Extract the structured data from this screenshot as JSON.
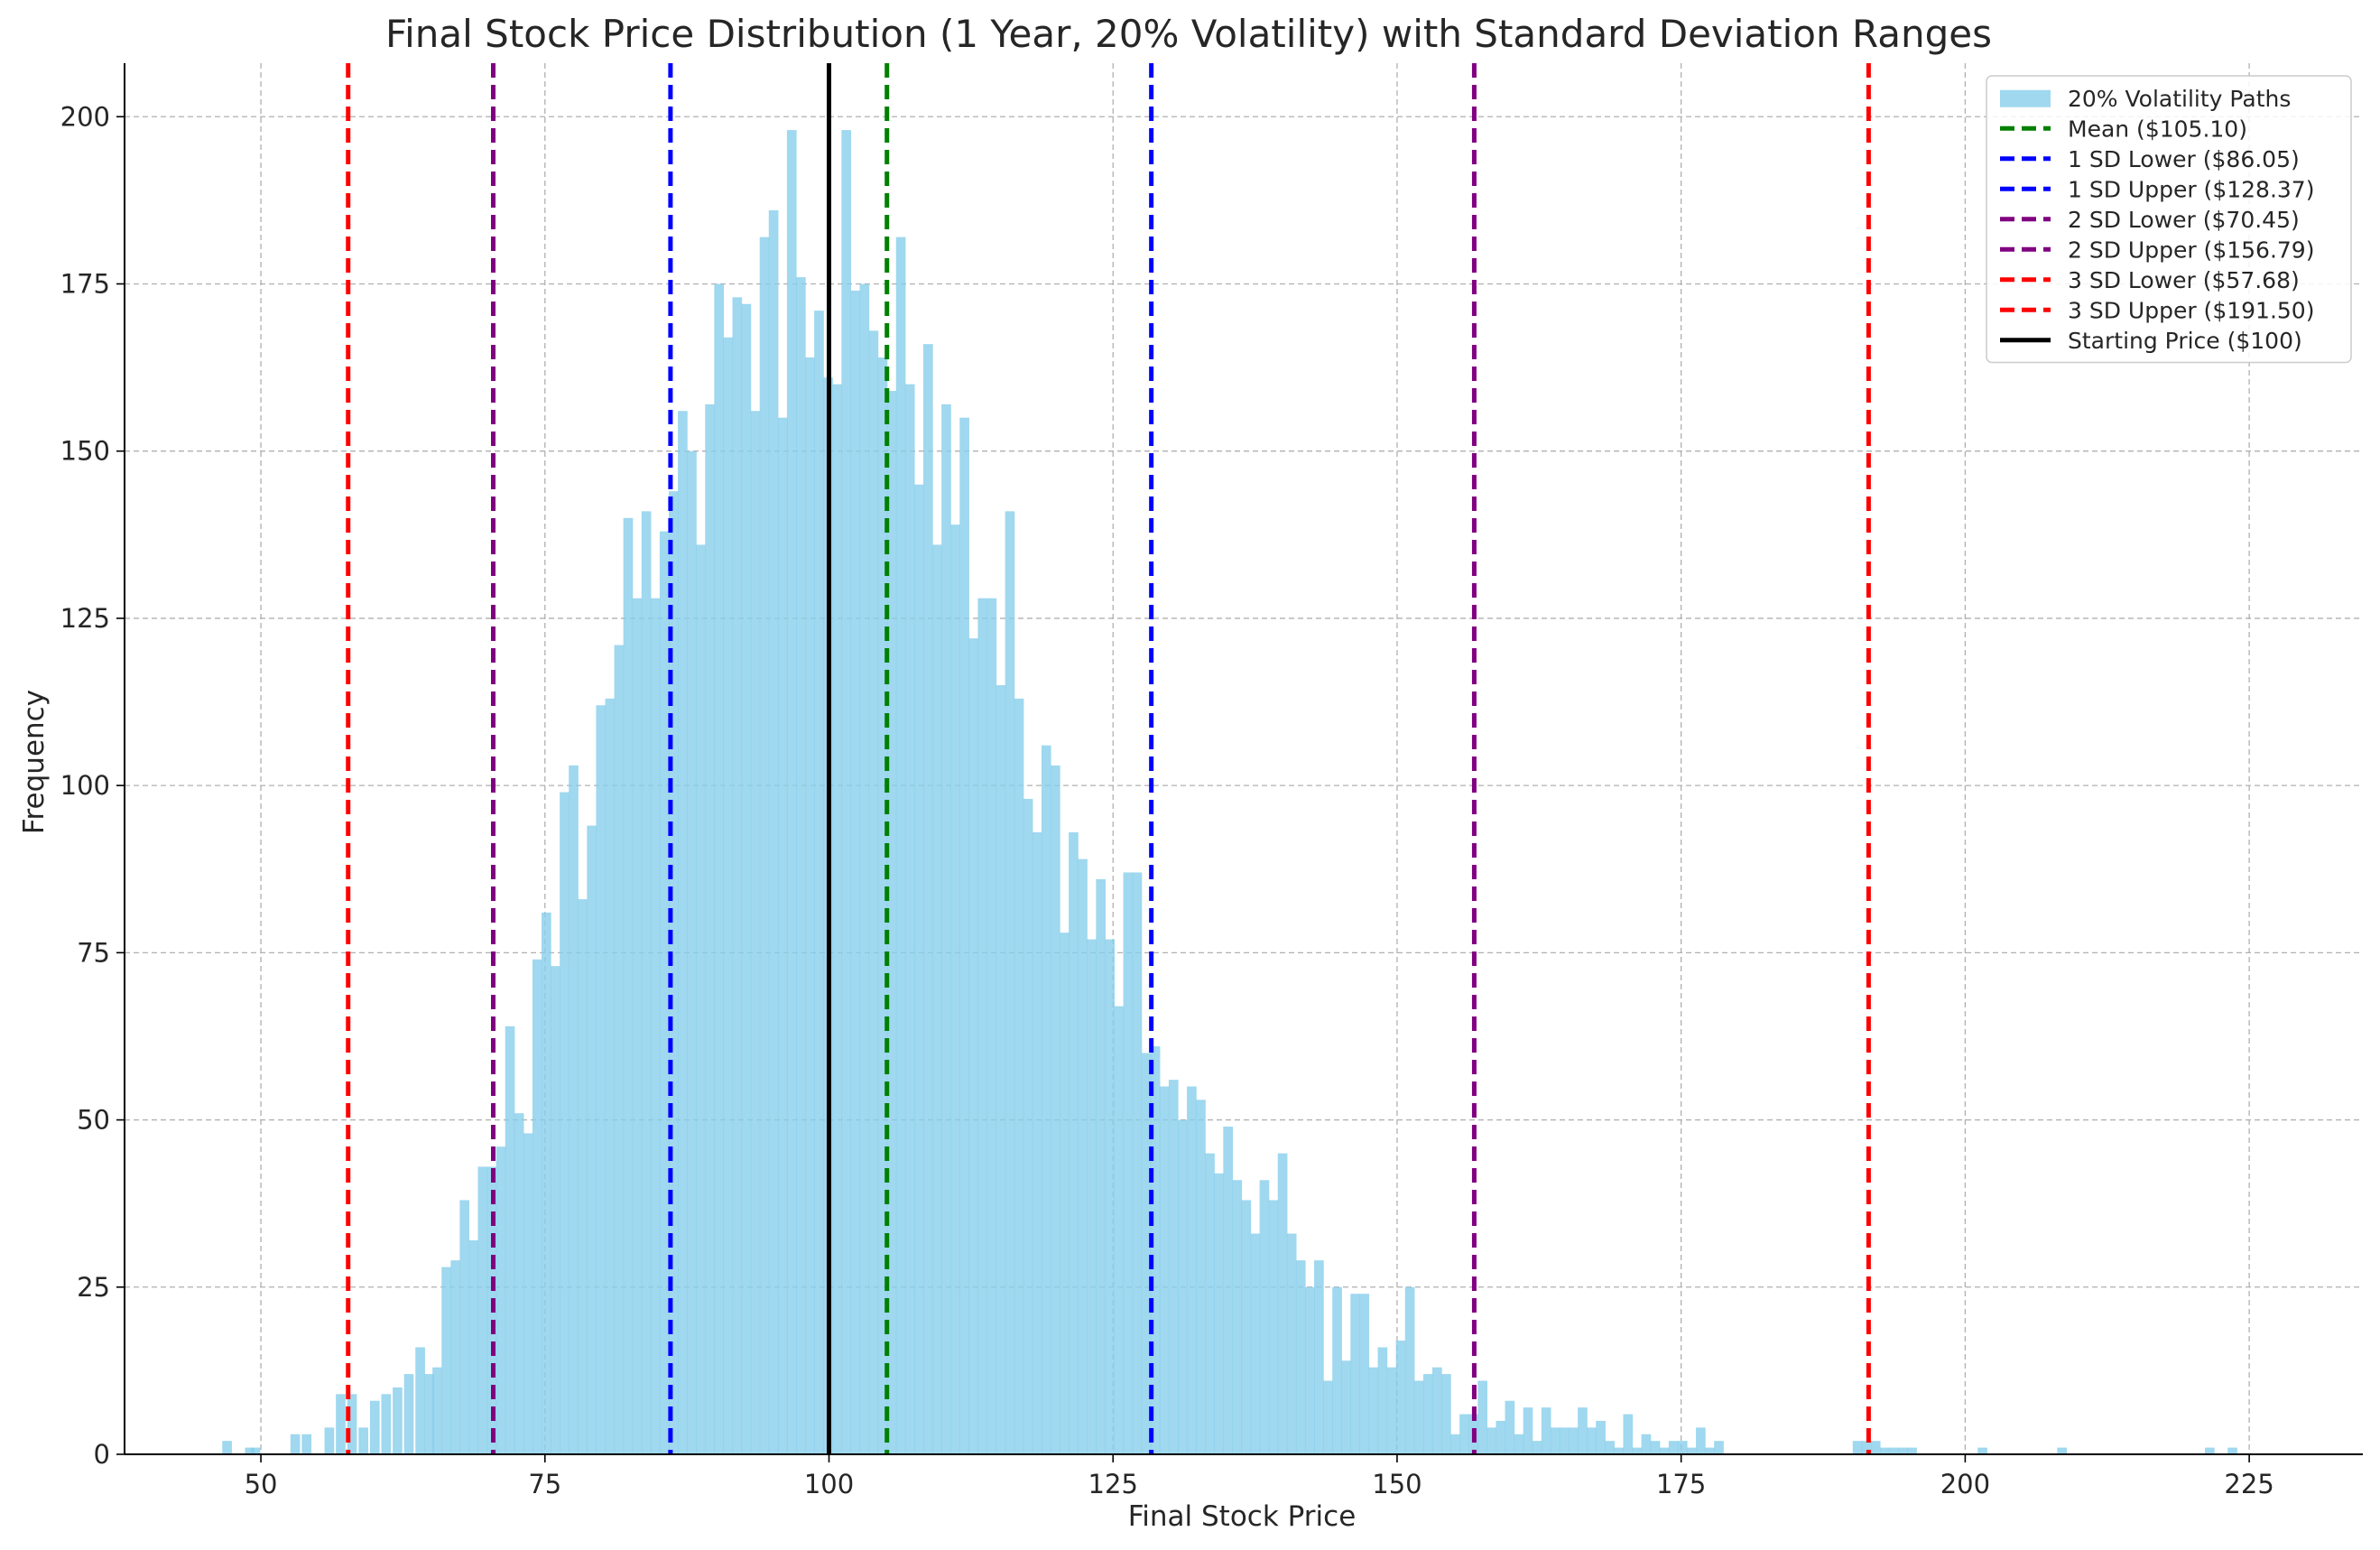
{
  "chart_data": {
    "type": "bar",
    "title": "Final Stock Price Distribution (1 Year, 20% Volatility) with Standard Deviation Ranges",
    "xlabel": "Final Stock Price",
    "ylabel": "Frequency",
    "xlim": [
      38,
      235
    ],
    "ylim": [
      0,
      208
    ],
    "xticks": [
      50,
      75,
      100,
      125,
      150,
      175,
      200,
      225
    ],
    "yticks": [
      0,
      25,
      50,
      75,
      100,
      125,
      150,
      175,
      200
    ],
    "grid": true,
    "legend_position": "top-right",
    "colors": {
      "histogram": "#87ceeb",
      "mean": "#008000",
      "sd1": "#0000ff",
      "sd2": "#800080",
      "sd3": "#ff0000",
      "start": "#000000",
      "grid": "#b0b0b0",
      "axis": "#000000"
    },
    "histogram": {
      "name": "20% Volatility Paths",
      "bin_width": 0.8,
      "bins": [
        [
          47,
          2
        ],
        [
          48,
          0
        ],
        [
          49,
          1
        ],
        [
          49.5,
          1
        ],
        [
          53,
          3
        ],
        [
          54,
          3
        ],
        [
          56,
          4
        ],
        [
          57,
          9
        ],
        [
          58,
          9
        ],
        [
          59,
          4
        ],
        [
          60,
          8
        ],
        [
          61,
          9
        ],
        [
          62,
          10
        ],
        [
          63,
          12
        ],
        [
          64,
          16
        ],
        [
          64.8,
          12
        ],
        [
          65.5,
          13
        ],
        [
          66.3,
          28
        ],
        [
          67.1,
          29
        ],
        [
          67.9,
          38
        ],
        [
          68.7,
          32
        ],
        [
          69.5,
          43
        ],
        [
          70.3,
          43
        ],
        [
          71.1,
          46
        ],
        [
          71.9,
          64
        ],
        [
          72.7,
          51
        ],
        [
          73.5,
          48
        ],
        [
          74.3,
          74
        ],
        [
          75.1,
          81
        ],
        [
          75.9,
          73
        ],
        [
          76.7,
          99
        ],
        [
          77.5,
          103
        ],
        [
          78.3,
          83
        ],
        [
          79.1,
          94
        ],
        [
          79.9,
          112
        ],
        [
          80.7,
          113
        ],
        [
          81.5,
          121
        ],
        [
          82.3,
          140
        ],
        [
          83.1,
          128
        ],
        [
          83.9,
          141
        ],
        [
          84.7,
          128
        ],
        [
          85.5,
          138
        ],
        [
          86.3,
          144
        ],
        [
          87.1,
          156
        ],
        [
          87.9,
          150
        ],
        [
          88.7,
          136
        ],
        [
          89.5,
          157
        ],
        [
          90.3,
          175
        ],
        [
          91.1,
          167
        ],
        [
          91.9,
          173
        ],
        [
          92.7,
          172
        ],
        [
          93.5,
          156
        ],
        [
          94.3,
          182
        ],
        [
          95.1,
          186
        ],
        [
          95.9,
          155
        ],
        [
          96.7,
          198
        ],
        [
          97.5,
          176
        ],
        [
          98.3,
          164
        ],
        [
          99.1,
          171
        ],
        [
          99.9,
          161
        ],
        [
          100.7,
          160
        ],
        [
          101.5,
          198
        ],
        [
          102.3,
          174
        ],
        [
          103.1,
          175
        ],
        [
          103.9,
          168
        ],
        [
          104.7,
          164
        ],
        [
          105.5,
          159
        ],
        [
          106.3,
          182
        ],
        [
          107.1,
          160
        ],
        [
          107.9,
          145
        ],
        [
          108.7,
          166
        ],
        [
          109.5,
          136
        ],
        [
          110.3,
          157
        ],
        [
          111.1,
          139
        ],
        [
          111.9,
          155
        ],
        [
          112.7,
          122
        ],
        [
          113.5,
          128
        ],
        [
          114.3,
          128
        ],
        [
          115.1,
          115
        ],
        [
          115.9,
          141
        ],
        [
          116.7,
          113
        ],
        [
          117.5,
          98
        ],
        [
          118.3,
          93
        ],
        [
          119.1,
          106
        ],
        [
          119.9,
          103
        ],
        [
          120.7,
          78
        ],
        [
          121.5,
          93
        ],
        [
          122.3,
          89
        ],
        [
          123.1,
          77
        ],
        [
          123.9,
          86
        ],
        [
          124.7,
          77
        ],
        [
          125.5,
          67
        ],
        [
          126.3,
          87
        ],
        [
          127.1,
          87
        ],
        [
          127.9,
          60
        ],
        [
          128.7,
          61
        ],
        [
          129.5,
          55
        ],
        [
          130.3,
          56
        ],
        [
          131.1,
          50
        ],
        [
          131.9,
          55
        ],
        [
          132.7,
          53
        ],
        [
          133.5,
          45
        ],
        [
          134.3,
          42
        ],
        [
          135.1,
          49
        ],
        [
          135.9,
          41
        ],
        [
          136.7,
          38
        ],
        [
          137.5,
          33
        ],
        [
          138.3,
          41
        ],
        [
          139.1,
          38
        ],
        [
          139.9,
          45
        ],
        [
          140.7,
          33
        ],
        [
          141.5,
          29
        ],
        [
          142.3,
          25
        ],
        [
          143.1,
          29
        ],
        [
          143.9,
          11
        ],
        [
          144.7,
          25
        ],
        [
          145.5,
          14
        ],
        [
          146.3,
          24
        ],
        [
          147.1,
          24
        ],
        [
          147.9,
          13
        ],
        [
          148.7,
          16
        ],
        [
          149.5,
          13
        ],
        [
          150.3,
          17
        ],
        [
          151.1,
          25
        ],
        [
          151.9,
          11
        ],
        [
          152.7,
          12
        ],
        [
          153.5,
          13
        ],
        [
          154.3,
          12
        ],
        [
          155.1,
          3
        ],
        [
          155.9,
          6
        ],
        [
          156.7,
          6
        ],
        [
          157.5,
          11
        ],
        [
          158.3,
          4
        ],
        [
          159.1,
          5
        ],
        [
          159.9,
          8
        ],
        [
          160.7,
          3
        ],
        [
          161.5,
          7
        ],
        [
          162.3,
          2
        ],
        [
          163.1,
          7
        ],
        [
          163.9,
          4
        ],
        [
          164.7,
          4
        ],
        [
          165.5,
          4
        ],
        [
          166.3,
          7
        ],
        [
          167.1,
          4
        ],
        [
          167.9,
          5
        ],
        [
          168.7,
          2
        ],
        [
          169.5,
          1
        ],
        [
          170.3,
          6
        ],
        [
          171.1,
          1
        ],
        [
          171.9,
          3
        ],
        [
          172.7,
          2
        ],
        [
          173.5,
          1
        ],
        [
          174.3,
          2
        ],
        [
          175.1,
          2
        ],
        [
          175.9,
          1
        ],
        [
          176.7,
          4
        ],
        [
          177.5,
          1
        ],
        [
          178.3,
          2
        ],
        [
          190.5,
          2
        ],
        [
          191.3,
          2
        ],
        [
          192.1,
          2
        ],
        [
          192.9,
          1
        ],
        [
          193.7,
          1
        ],
        [
          194.5,
          1
        ],
        [
          195.3,
          1
        ],
        [
          201.5,
          1
        ],
        [
          208.5,
          1
        ],
        [
          221.5,
          1
        ],
        [
          223.5,
          1
        ]
      ]
    },
    "vertical_lines": [
      {
        "label": "Mean ($105.10)",
        "x": 105.1,
        "color": "#008000",
        "style": "dashed"
      },
      {
        "label": "1 SD Lower ($86.05)",
        "x": 86.05,
        "color": "#0000ff",
        "style": "dashed"
      },
      {
        "label": "1 SD Upper ($128.37)",
        "x": 128.37,
        "color": "#0000ff",
        "style": "dashed"
      },
      {
        "label": "2 SD Lower ($70.45)",
        "x": 70.45,
        "color": "#800080",
        "style": "dashed"
      },
      {
        "label": "2 SD Upper ($156.79)",
        "x": 156.79,
        "color": "#800080",
        "style": "dashed"
      },
      {
        "label": "3 SD Lower ($57.68)",
        "x": 57.68,
        "color": "#ff0000",
        "style": "dashed"
      },
      {
        "label": "3 SD Upper ($191.50)",
        "x": 191.5,
        "color": "#ff0000",
        "style": "dashed"
      },
      {
        "label": "Starting Price ($100)",
        "x": 100,
        "color": "#000000",
        "style": "solid"
      }
    ]
  }
}
